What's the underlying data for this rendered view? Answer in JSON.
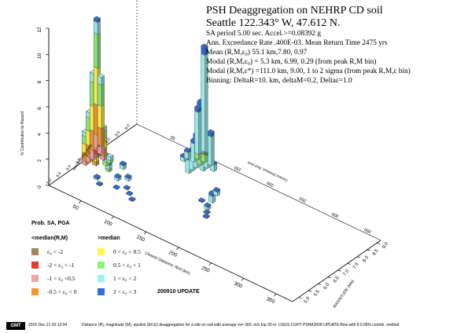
{
  "header": {
    "title": "PSH Deaggregation on NEHRP CD soil",
    "site": "Seattle 122.343° W, 47.612 N.",
    "lines": [
      "SA period 5.00 sec. Accel.>=0.08392  g",
      "Ann. Exceedance Rate .400E-03. Mean Return Time 2475  yrs",
      "Mean (R,M,ε₀)  55.1 km,7.80,  0.97",
      "Modal (R,M,ε₀) =  5.3 km, 6.99, 0.29 (from peak R,M bin)",
      "Modal (R,M,ε*) =111.0 km, 9.00, 1 to 2 sigma  (from peak R,M,ε bin)",
      "Binning: DeltaR=10. km, deltaM=0.2, Deltaε=1.0"
    ]
  },
  "legend": {
    "title": "Prob. SA, PGA",
    "col_left_header": "<median(R,M)",
    "col_right_header": ">median",
    "items": [
      {
        "label": "ε₀ < -2",
        "color": "#a5845a"
      },
      {
        "label": "-2 < ε₀ < -1",
        "color": "#e83a2f"
      },
      {
        "label": "-1 < ε₀ <0.5",
        "color": "#f4a3a0"
      },
      {
        "label": "-0.5 < ε₀ < 0",
        "color": "#f39a2c"
      },
      {
        "label": "0 < ε₀ < 0.5",
        "color": "#fff64a"
      },
      {
        "label": "0.5 < ε₀ < 1",
        "color": "#8ff07c"
      },
      {
        "label": "1 < ε₀ < 2",
        "color": "#9ff1f1"
      },
      {
        "label": "2 < ε₀ < 3",
        "color": "#2f6fd6"
      }
    ]
  },
  "update_label": "200910 UPDATE",
  "footer": {
    "gmt": "GMT",
    "timestamp": "2016 Dec 21 02:12:04",
    "description": "Distance (R), magnitude (M), epsilon (E0,E) deaggregation for a site on soil with average vs= 360. m/s top 30 m. USGS CGHT PSHA2008 UPDATE   Bins with lt 0.05% contrib. omitted"
  },
  "chart_data": {
    "type": "bar",
    "axes": {
      "z_label": "% Contribution to Hazard",
      "z_ticks": [
        "0",
        "2",
        "4",
        "6",
        "8",
        "10",
        "12"
      ],
      "z_max": 12,
      "r_label": "Closest Distance, Rcd (km)",
      "r_ticks": [
        "50",
        "100",
        "150",
        "200",
        "250",
        "300",
        "350"
      ],
      "r_max": 375,
      "m_label": "MAGNITUDE (Mw)",
      "m_ticks": [
        "5.0",
        "5.5",
        "6.0",
        "6.5",
        "7.0",
        "7.5",
        "8.0",
        "8.5",
        "9.0"
      ],
      "m_min": 4.7,
      "m_max": 9.2,
      "back_r_label": "Closest Distance, Rcd (km)",
      "back_r_ticks": [
        "50",
        "100",
        "150",
        "200",
        "250",
        "300",
        "350"
      ],
      "back_m_label": "MAGNITUDE (Mw)",
      "back_m_ticks": [
        "5.0",
        "5.5",
        "6.0",
        "6.5",
        "7.0",
        "7.5",
        "8.0",
        "8.5",
        "9.0"
      ]
    },
    "epsilon_bins": [
      "ε₀ < -2",
      "-2 < ε₀ < -1",
      "-1 < ε₀ <0.5",
      "-0.5 < ε₀ < 0",
      "0 < ε₀ < 0.5",
      "0.5 < ε₀ < 1",
      "1 < ε₀ < 2",
      "2 < ε₀ < 3"
    ],
    "bars": [
      {
        "r": 5,
        "m": 7.0,
        "seg": [
          [
            "#a5845a",
            0.2
          ],
          [
            "#e83a2f",
            0.3
          ],
          [
            "#f4a3a0",
            1.2
          ],
          [
            "#f39a2c",
            2.3
          ],
          [
            "#fff64a",
            2.8
          ],
          [
            "#8ff07c",
            2.6
          ],
          [
            "#9ff1f1",
            0.9
          ],
          [
            "#2f6fd6",
            0.2
          ]
        ]
      },
      {
        "r": 5,
        "m": 7.2,
        "seg": [
          [
            "#f4a3a0",
            0.6
          ],
          [
            "#f39a2c",
            1.4
          ],
          [
            "#fff64a",
            1.7
          ],
          [
            "#8ff07c",
            1.6
          ],
          [
            "#9ff1f1",
            0.6
          ]
        ]
      },
      {
        "r": 5,
        "m": 6.8,
        "seg": [
          [
            "#f4a3a0",
            0.7
          ],
          [
            "#f39a2c",
            1.5
          ],
          [
            "#fff64a",
            1.9
          ],
          [
            "#8ff07c",
            1.8
          ],
          [
            "#9ff1f1",
            0.7
          ]
        ]
      },
      {
        "r": 5,
        "m": 6.6,
        "seg": [
          [
            "#f4a3a0",
            0.4
          ],
          [
            "#f39a2c",
            0.9
          ],
          [
            "#fff64a",
            1.1
          ],
          [
            "#8ff07c",
            1.0
          ],
          [
            "#9ff1f1",
            0.4
          ]
        ]
      },
      {
        "r": 5,
        "m": 6.4,
        "seg": [
          [
            "#f4a3a0",
            0.3
          ],
          [
            "#f39a2c",
            0.6
          ],
          [
            "#fff64a",
            0.7
          ],
          [
            "#8ff07c",
            0.6
          ],
          [
            "#9ff1f1",
            0.3
          ]
        ]
      },
      {
        "r": 15,
        "m": 7.0,
        "seg": [
          [
            "#f4a3a0",
            0.3
          ],
          [
            "#f39a2c",
            0.6
          ],
          [
            "#fff64a",
            0.7
          ],
          [
            "#8ff07c",
            0.6
          ],
          [
            "#9ff1f1",
            0.3
          ]
        ]
      },
      {
        "r": 15,
        "m": 6.6,
        "seg": [
          [
            "#f39a2c",
            0.3
          ],
          [
            "#fff64a",
            0.4
          ],
          [
            "#8ff07c",
            0.4
          ],
          [
            "#9ff1f1",
            0.2
          ]
        ]
      },
      {
        "r": 25,
        "m": 6.8,
        "seg": [
          [
            "#8ff07c",
            0.3
          ],
          [
            "#9ff1f1",
            0.4
          ],
          [
            "#2f6fd6",
            0.1
          ]
        ]
      },
      {
        "r": 25,
        "m": 7.0,
        "seg": [
          [
            "#8ff07c",
            0.2
          ],
          [
            "#9ff1f1",
            0.3
          ]
        ]
      },
      {
        "r": 35,
        "m": 6.6,
        "seg": [
          [
            "#8ff07c",
            0.2
          ],
          [
            "#9ff1f1",
            0.3
          ],
          [
            "#2f6fd6",
            0.1
          ]
        ]
      },
      {
        "r": 45,
        "m": 7.0,
        "seg": [
          [
            "#9ff1f1",
            0.3
          ],
          [
            "#2f6fd6",
            0.1
          ]
        ]
      },
      {
        "r": 55,
        "m": 6.4,
        "seg": [
          [
            "#9ff1f1",
            0.2
          ],
          [
            "#2f6fd6",
            0.1
          ]
        ]
      },
      {
        "r": 65,
        "m": 6.6,
        "seg": [
          [
            "#9ff1f1",
            0.2
          ],
          [
            "#2f6fd6",
            0.1
          ]
        ]
      },
      {
        "r": 75,
        "m": 6.2,
        "seg": [
          [
            "#2f6fd6",
            0.1
          ]
        ]
      },
      {
        "r": 85,
        "m": 6.0,
        "seg": [
          [
            "#2f6fd6",
            0.1
          ]
        ]
      },
      {
        "r": 95,
        "m": 5.8,
        "seg": [
          [
            "#2f6fd6",
            0.1
          ]
        ]
      },
      {
        "r": 65,
        "m": 6.0,
        "seg": [
          [
            "#2f6fd6",
            0.1
          ]
        ]
      },
      {
        "r": 45,
        "m": 5.8,
        "seg": [
          [
            "#2f6fd6",
            0.1
          ]
        ]
      },
      {
        "r": 35,
        "m": 6.0,
        "seg": [
          [
            "#9ff1f1",
            0.1
          ],
          [
            "#2f6fd6",
            0.1
          ]
        ]
      },
      {
        "r": 110,
        "m": 9.0,
        "seg": [
          [
            "#8ff07c",
            0.6
          ],
          [
            "#9ff1f1",
            7.6
          ],
          [
            "#2f6fd6",
            0.6
          ]
        ]
      },
      {
        "r": 110,
        "m": 8.8,
        "seg": [
          [
            "#8ff07c",
            0.4
          ],
          [
            "#9ff1f1",
            4.0
          ],
          [
            "#2f6fd6",
            0.4
          ]
        ]
      },
      {
        "r": 110,
        "m": 8.6,
        "seg": [
          [
            "#9ff1f1",
            2.2
          ],
          [
            "#2f6fd6",
            0.3
          ]
        ]
      },
      {
        "r": 110,
        "m": 8.4,
        "seg": [
          [
            "#9ff1f1",
            1.4
          ],
          [
            "#2f6fd6",
            0.2
          ]
        ]
      },
      {
        "r": 110,
        "m": 8.2,
        "seg": [
          [
            "#9ff1f1",
            1.0
          ],
          [
            "#2f6fd6",
            0.2
          ]
        ]
      },
      {
        "r": 100,
        "m": 9.0,
        "seg": [
          [
            "#8ff07c",
            0.4
          ],
          [
            "#9ff1f1",
            3.2
          ],
          [
            "#2f6fd6",
            0.3
          ]
        ]
      },
      {
        "r": 100,
        "m": 8.8,
        "seg": [
          [
            "#9ff1f1",
            1.4
          ],
          [
            "#2f6fd6",
            0.2
          ]
        ]
      },
      {
        "r": 120,
        "m": 9.0,
        "seg": [
          [
            "#9ff1f1",
            2.2
          ],
          [
            "#2f6fd6",
            0.3
          ]
        ]
      },
      {
        "r": 120,
        "m": 8.8,
        "seg": [
          [
            "#9ff1f1",
            1.2
          ],
          [
            "#2f6fd6",
            0.2
          ]
        ]
      },
      {
        "r": 120,
        "m": 8.6,
        "seg": [
          [
            "#9ff1f1",
            0.6
          ],
          [
            "#2f6fd6",
            0.2
          ]
        ]
      },
      {
        "r": 130,
        "m": 8.8,
        "seg": [
          [
            "#9ff1f1",
            0.5
          ],
          [
            "#2f6fd6",
            0.1
          ]
        ]
      },
      {
        "r": 90,
        "m": 8.8,
        "seg": [
          [
            "#9ff1f1",
            0.5
          ],
          [
            "#2f6fd6",
            0.1
          ]
        ]
      },
      {
        "r": 90,
        "m": 8.6,
        "seg": [
          [
            "#9ff1f1",
            0.3
          ],
          [
            "#2f6fd6",
            0.1
          ]
        ]
      },
      {
        "r": 170,
        "m": 7.4,
        "seg": [
          [
            "#9ff1f1",
            0.5
          ],
          [
            "#2f6fd6",
            0.2
          ]
        ]
      },
      {
        "r": 175,
        "m": 7.0,
        "seg": [
          [
            "#9ff1f1",
            0.2
          ],
          [
            "#2f6fd6",
            0.1
          ]
        ]
      },
      {
        "r": 180,
        "m": 6.8,
        "seg": [
          [
            "#2f6fd6",
            0.1
          ]
        ]
      },
      {
        "r": 185,
        "m": 6.6,
        "seg": [
          [
            "#2f6fd6",
            0.1
          ]
        ]
      },
      {
        "r": 165,
        "m": 7.8,
        "seg": [
          [
            "#9ff1f1",
            0.3
          ],
          [
            "#2f6fd6",
            0.1
          ]
        ]
      },
      {
        "r": 160,
        "m": 7.2,
        "seg": [
          [
            "#2f6fd6",
            0.1
          ]
        ]
      }
    ]
  }
}
